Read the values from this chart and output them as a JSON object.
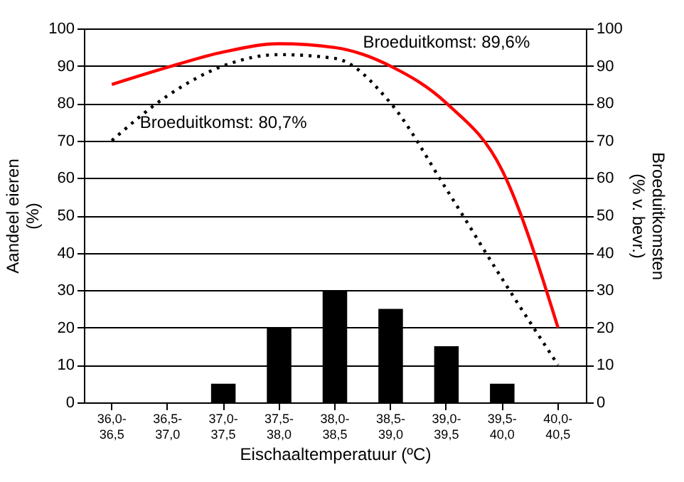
{
  "chart_data": {
    "type": "bar",
    "xlabel": "Eischaaltemperatuur (ºC)",
    "ylabel": "Aandeel eieren (%)",
    "y2label": "Broeduitkomsten (% v. bevr.)",
    "categories": [
      "36,0-36,5",
      "36,5-37,0",
      "37,0-37,5",
      "37,5-38,0",
      "38,0-38,5",
      "38,5-39,0",
      "39,0-39,5",
      "39,5-40,0",
      "40,0-40,5"
    ],
    "series": [
      {
        "color": "#000000",
        "values": [
          0,
          0,
          5,
          20,
          30,
          25,
          15,
          5,
          0
        ]
      },
      {
        "type": "line",
        "name": "Broeduitkomst: 80,7%",
        "color": "#000000",
        "line_style": "dotted",
        "axis": "y2",
        "values": [
          70,
          82,
          90,
          93,
          92,
          80,
          57,
          33,
          10
        ]
      },
      {
        "type": "line",
        "name": "Broeduitkomst: 89,6%",
        "color": "#ff0000",
        "line_style": "solid",
        "axis": "y2",
        "values": [
          85,
          89.6,
          93.7,
          95.9,
          94.9,
          89.9,
          80,
          62,
          20
        ]
      }
    ],
    "ylim": [
      0,
      100
    ],
    "yticks": [
      0,
      10,
      20,
      30,
      40,
      50,
      60,
      70,
      80,
      90,
      100
    ],
    "y2lim": [
      0,
      100
    ],
    "y2ticks": [
      0,
      10,
      20,
      30,
      40,
      50,
      60,
      70,
      80,
      90,
      100
    ],
    "grid": "y",
    "legend": false,
    "marker": "none"
  }
}
